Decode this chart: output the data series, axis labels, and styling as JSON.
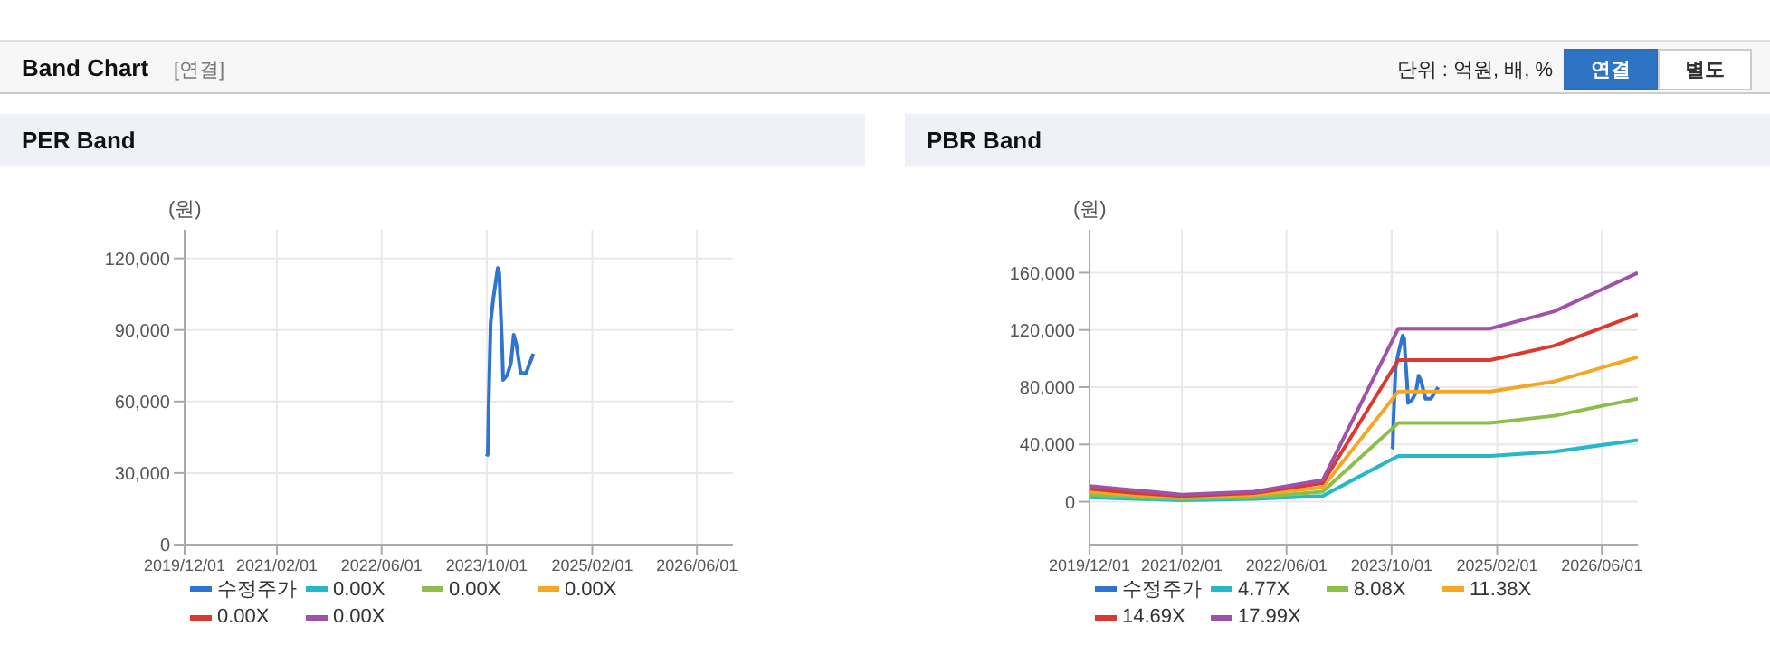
{
  "chart_data": [
    {
      "type": "other",
      "title": "Band Chart",
      "annotations": [
        "[연결]",
        "단위 : 억원, 배, %",
        "연결",
        "별도"
      ]
    },
    {
      "type": "line",
      "title": "PER Band",
      "ylabel": "(원)",
      "xlim": [
        "2019-12-01",
        "2026-11-15"
      ],
      "xticks": [
        {
          "value": "2019-12-01",
          "label": "2019/12/01"
        },
        {
          "value": "2021-02-01",
          "label": "2021/02/01"
        },
        {
          "value": "2022-06-01",
          "label": "2022/06/01"
        },
        {
          "value": "2023-10-01",
          "label": "2023/10/01"
        },
        {
          "value": "2025-02-01",
          "label": "2025/02/01"
        },
        {
          "value": "2026-06-01",
          "label": "2026/06/01"
        }
      ],
      "ylim": [
        0,
        132000
      ],
      "yticks": [
        0,
        {
          "value": 30000,
          "label": "30,000"
        },
        {
          "value": 60000,
          "label": "60,000"
        },
        {
          "value": 90000,
          "label": "90,000"
        },
        {
          "value": 120000,
          "label": "120,000"
        }
      ],
      "grid": true,
      "legend": "bottom",
      "marker": "none",
      "line_style": "solid",
      "series": [
        {
          "name": "수정주가",
          "color": "#2f74d0",
          "x": [
            "2023-10-01",
            "2023-10-06",
            "2023-10-09",
            "2023-10-14",
            "2023-10-19",
            "2023-10-31",
            "2023-11-13",
            "2023-11-21",
            "2023-11-28",
            "2023-12-04",
            "2023-12-11",
            "2023-12-16",
            "2024-01-03",
            "2024-01-21",
            "2024-02-03",
            "2024-02-15",
            "2024-03-06",
            "2024-03-31",
            "2024-05-04"
          ],
          "values": [
            37000,
            38000,
            55000,
            74000,
            93000,
            103000,
            111000,
            116000,
            114000,
            99000,
            84000,
            69000,
            71000,
            76000,
            88000,
            84000,
            72000,
            72000,
            80000
          ]
        },
        {
          "name": "0.00X",
          "color": "#26b8c8"
        },
        {
          "name": "0.00X",
          "color": "#8cbf4a"
        },
        {
          "name": "0.00X",
          "color": "#f5a623"
        },
        {
          "name": "0.00X",
          "color": "#d93a2f"
        },
        {
          "name": "0.00X",
          "color": "#a052a8"
        }
      ]
    },
    {
      "type": "line",
      "title": "PBR Band",
      "ylabel": "(원)",
      "x": [
        "2019-12-01",
        "2020-07-01",
        "2021-02-01",
        "2022-01-01",
        "2022-11-15",
        "2023-11-01",
        "2024-12-31",
        "2025-10-24",
        "2026-11-15"
      ],
      "xlim": [
        "2019-12-01",
        "2026-11-15"
      ],
      "xticks": [
        {
          "value": "2019-12-01",
          "label": "2019/12/01"
        },
        {
          "value": "2021-02-01",
          "label": "2021/02/01"
        },
        {
          "value": "2022-06-01",
          "label": "2022/06/01"
        },
        {
          "value": "2023-10-01",
          "label": "2023/10/01"
        },
        {
          "value": "2025-02-01",
          "label": "2025/02/01"
        },
        {
          "value": "2026-06-01",
          "label": "2026/06/01"
        }
      ],
      "ylim": [
        -30000,
        190000
      ],
      "yticks": [
        0,
        {
          "value": 40000,
          "label": "40,000"
        },
        {
          "value": 80000,
          "label": "80,000"
        },
        {
          "value": 120000,
          "label": "120,000"
        },
        {
          "value": 160000,
          "label": "160,000"
        }
      ],
      "grid": true,
      "legend": "bottom",
      "marker": "none",
      "line_style": "solid",
      "series": [
        {
          "name": "수정주가",
          "color": "#2f74d0",
          "x": [
            "2023-10-01",
            "2023-10-06",
            "2023-10-09",
            "2023-10-14",
            "2023-10-19",
            "2023-10-31",
            "2023-11-13",
            "2023-11-21",
            "2023-11-28",
            "2023-12-04",
            "2023-12-11",
            "2023-12-16",
            "2024-01-03",
            "2024-01-21",
            "2024-02-03",
            "2024-02-15",
            "2024-03-06",
            "2024-03-31",
            "2024-05-04"
          ],
          "values": [
            37000,
            38000,
            55000,
            74000,
            93000,
            103000,
            111000,
            116000,
            114000,
            99000,
            84000,
            69000,
            71000,
            76000,
            88000,
            84000,
            72000,
            72000,
            80000
          ]
        },
        {
          "name": "4.77X",
          "color": "#26b8c8",
          "values": [
            3000,
            2000,
            1000,
            2000,
            4000,
            32000,
            32000,
            35000,
            43000
          ]
        },
        {
          "name": "8.08X",
          "color": "#8cbf4a",
          "values": [
            5000,
            3000,
            2000,
            3000,
            7000,
            55000,
            55000,
            60000,
            72000
          ]
        },
        {
          "name": "11.38X",
          "color": "#f5a623",
          "values": [
            7000,
            5000,
            3000,
            5000,
            10000,
            77000,
            77000,
            84000,
            101000
          ]
        },
        {
          "name": "14.69X",
          "color": "#d93a2f",
          "values": [
            9000,
            6000,
            4000,
            6000,
            13000,
            99000,
            99000,
            109000,
            131000
          ]
        },
        {
          "name": "17.99X",
          "color": "#a052a8",
          "values": [
            11000,
            8000,
            5000,
            7000,
            15000,
            121000,
            121000,
            133000,
            160000
          ]
        }
      ]
    }
  ]
}
